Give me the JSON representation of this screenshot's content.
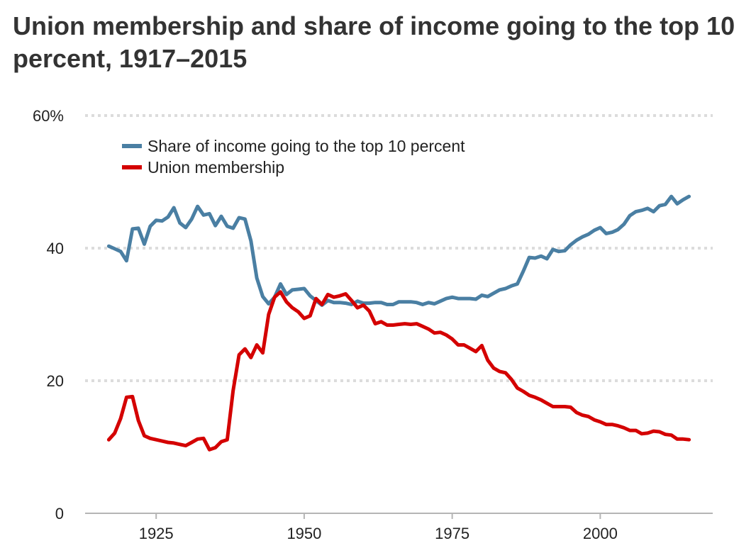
{
  "chart_data": {
    "type": "line",
    "title": "Union membership and share of income going to the top 10 percent, 1917–2015",
    "xlabel": "",
    "ylabel": "",
    "xlim": [
      1913,
      2019
    ],
    "ylim": [
      0,
      60
    ],
    "grid": true,
    "legend_position": "top-left",
    "x_ticks": [
      1925,
      1950,
      1975,
      2000
    ],
    "x_tick_labels": [
      "1925",
      "1950",
      "1975",
      "2000"
    ],
    "y_ticks": [
      0,
      20,
      40,
      60
    ],
    "y_tick_labels": [
      "0",
      "20",
      "40",
      "60%"
    ],
    "series": [
      {
        "name": "Share of income going to the top 10 percent",
        "color": "#4a7fa3",
        "x": [
          1917,
          1918,
          1919,
          1920,
          1921,
          1922,
          1923,
          1924,
          1925,
          1926,
          1927,
          1928,
          1929,
          1930,
          1931,
          1932,
          1933,
          1934,
          1935,
          1936,
          1937,
          1938,
          1939,
          1940,
          1941,
          1942,
          1943,
          1944,
          1945,
          1946,
          1947,
          1948,
          1949,
          1950,
          1951,
          1952,
          1953,
          1954,
          1955,
          1956,
          1957,
          1958,
          1959,
          1960,
          1961,
          1962,
          1963,
          1964,
          1965,
          1966,
          1967,
          1968,
          1969,
          1970,
          1971,
          1972,
          1973,
          1974,
          1975,
          1976,
          1977,
          1978,
          1979,
          1980,
          1981,
          1982,
          1983,
          1984,
          1985,
          1986,
          1987,
          1988,
          1989,
          1990,
          1991,
          1992,
          1993,
          1994,
          1995,
          1996,
          1997,
          1998,
          1999,
          2000,
          2001,
          2002,
          2003,
          2004,
          2005,
          2006,
          2007,
          2008,
          2009,
          2010,
          2011,
          2012,
          2013,
          2014,
          2015
        ],
        "values": [
          40.3,
          39.9,
          39.5,
          38.1,
          42.9,
          43.0,
          40.6,
          43.3,
          44.2,
          44.1,
          44.7,
          46.1,
          43.8,
          43.1,
          44.4,
          46.3,
          45.0,
          45.2,
          43.4,
          44.8,
          43.3,
          43.0,
          44.6,
          44.4,
          41.1,
          35.5,
          32.7,
          31.6,
          32.6,
          34.6,
          33.0,
          33.7,
          33.8,
          33.9,
          32.8,
          32.1,
          31.4,
          32.1,
          31.8,
          31.8,
          31.7,
          31.5,
          32.0,
          31.7,
          31.7,
          31.8,
          31.8,
          31.5,
          31.5,
          31.9,
          31.9,
          31.9,
          31.8,
          31.5,
          31.8,
          31.6,
          32.0,
          32.4,
          32.6,
          32.4,
          32.4,
          32.4,
          32.3,
          32.9,
          32.7,
          33.2,
          33.7,
          33.9,
          34.3,
          34.6,
          36.5,
          38.6,
          38.5,
          38.8,
          38.4,
          39.8,
          39.5,
          39.6,
          40.5,
          41.2,
          41.7,
          42.1,
          42.7,
          43.1,
          42.2,
          42.4,
          42.8,
          43.6,
          44.9,
          45.5,
          45.7,
          46.0,
          45.5,
          46.4,
          46.6,
          47.8,
          46.7,
          47.3,
          47.8
        ]
      },
      {
        "name": "Union membership",
        "color": "#d40000",
        "x": [
          1917,
          1918,
          1919,
          1920,
          1921,
          1922,
          1923,
          1924,
          1925,
          1926,
          1927,
          1928,
          1929,
          1930,
          1931,
          1932,
          1933,
          1934,
          1935,
          1936,
          1937,
          1938,
          1939,
          1940,
          1941,
          1942,
          1943,
          1944,
          1945,
          1946,
          1947,
          1948,
          1949,
          1950,
          1951,
          1952,
          1953,
          1954,
          1955,
          1956,
          1957,
          1958,
          1959,
          1960,
          1961,
          1962,
          1963,
          1964,
          1965,
          1966,
          1967,
          1968,
          1969,
          1970,
          1971,
          1972,
          1973,
          1974,
          1975,
          1976,
          1977,
          1978,
          1979,
          1980,
          1981,
          1982,
          1983,
          1984,
          1985,
          1986,
          1987,
          1988,
          1989,
          1990,
          1991,
          1992,
          1993,
          1994,
          1995,
          1996,
          1997,
          1998,
          1999,
          2000,
          2001,
          2002,
          2003,
          2004,
          2005,
          2006,
          2007,
          2008,
          2009,
          2010,
          2011,
          2012,
          2013,
          2014,
          2015
        ],
        "values": [
          11.1,
          12.1,
          14.3,
          17.5,
          17.6,
          14.0,
          11.7,
          11.3,
          11.1,
          10.9,
          10.7,
          10.6,
          10.4,
          10.2,
          10.7,
          11.2,
          11.3,
          9.6,
          9.9,
          10.8,
          11.1,
          18.5,
          23.9,
          24.8,
          23.5,
          25.4,
          24.2,
          30.0,
          32.6,
          33.4,
          31.9,
          31.0,
          30.4,
          29.4,
          29.8,
          32.4,
          31.5,
          33.0,
          32.6,
          32.8,
          33.1,
          32.1,
          31.0,
          31.4,
          30.5,
          28.6,
          28.9,
          28.4,
          28.4,
          28.5,
          28.6,
          28.5,
          28.6,
          28.2,
          27.8,
          27.2,
          27.3,
          26.9,
          26.3,
          25.4,
          25.4,
          24.9,
          24.4,
          25.3,
          23.1,
          21.9,
          21.4,
          21.2,
          20.2,
          18.9,
          18.4,
          17.8,
          17.5,
          17.1,
          16.6,
          16.1,
          16.1,
          16.1,
          16.0,
          15.2,
          14.8,
          14.6,
          14.1,
          13.8,
          13.4,
          13.4,
          13.2,
          12.9,
          12.5,
          12.5,
          12.0,
          12.1,
          12.4,
          12.3,
          11.9,
          11.8,
          11.2,
          11.2,
          11.1
        ]
      }
    ]
  }
}
